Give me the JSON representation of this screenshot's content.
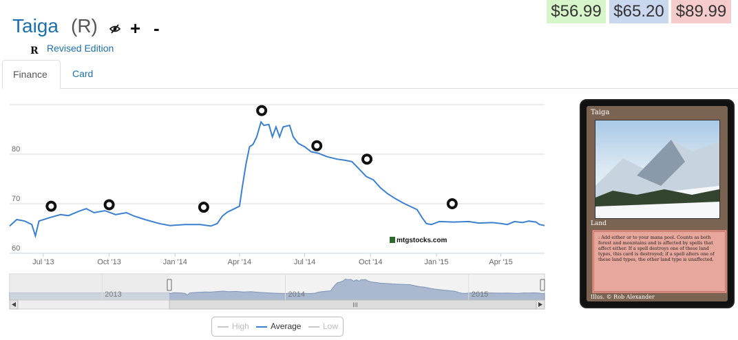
{
  "card": {
    "name": "Taiga",
    "rarity": "(R)",
    "set_symbol": "R",
    "set_name": "Revised Edition",
    "add_label": "+",
    "remove_label": "-"
  },
  "prices": {
    "low": "$56.99",
    "average": "$65.20",
    "high": "$89.99",
    "colors": {
      "low": "#d6f5c8",
      "average": "#c9d7ef",
      "high": "#f5cbcb"
    }
  },
  "tabs": [
    {
      "label": "Finance",
      "active": true
    },
    {
      "label": "Card",
      "active": false
    }
  ],
  "chart_data": {
    "type": "line",
    "title": "",
    "xlabel": "",
    "ylabel": "",
    "y_ticks": [
      60,
      70,
      80
    ],
    "ylim": [
      60,
      90
    ],
    "x_tick_labels": [
      "Jul '13",
      "Oct '13",
      "Jan '14",
      "Apr '14",
      "Jul '14",
      "Oct '14",
      "Jan '15",
      "Apr '15"
    ],
    "x_tick_dates": [
      "2013-07-01",
      "2013-10-01",
      "2014-01-01",
      "2014-04-01",
      "2014-07-01",
      "2014-10-01",
      "2015-01-01",
      "2015-04-01"
    ],
    "xlim": [
      "2013-05-15",
      "2015-06-01"
    ],
    "grid": true,
    "series": [
      {
        "name": "Average",
        "color": "#3a7fd0",
        "points": [
          [
            "2013-05-15",
            65.5
          ],
          [
            "2013-05-25",
            66.8
          ],
          [
            "2013-06-05",
            66.5
          ],
          [
            "2013-06-15",
            65.8
          ],
          [
            "2013-06-20",
            63.5
          ],
          [
            "2013-06-25",
            66.5
          ],
          [
            "2013-07-10",
            67.2
          ],
          [
            "2013-07-25",
            67.8
          ],
          [
            "2013-08-05",
            67.6
          ],
          [
            "2013-08-20",
            68.5
          ],
          [
            "2013-08-30",
            69.0
          ],
          [
            "2013-09-10",
            68.2
          ],
          [
            "2013-09-25",
            68.6
          ],
          [
            "2013-10-10",
            67.8
          ],
          [
            "2013-10-25",
            68.2
          ],
          [
            "2013-11-05",
            67.5
          ],
          [
            "2013-11-20",
            66.8
          ],
          [
            "2013-12-10",
            66.0
          ],
          [
            "2013-12-25",
            65.6
          ],
          [
            "2014-01-15",
            65.8
          ],
          [
            "2014-02-05",
            65.8
          ],
          [
            "2014-02-20",
            65.5
          ],
          [
            "2014-03-01",
            66.0
          ],
          [
            "2014-03-08",
            67.5
          ],
          [
            "2014-03-15",
            68.3
          ],
          [
            "2014-03-25",
            69.0
          ],
          [
            "2014-04-01",
            69.5
          ],
          [
            "2014-04-05",
            73.5
          ],
          [
            "2014-04-10",
            78.0
          ],
          [
            "2014-04-15",
            81.5
          ],
          [
            "2014-04-20",
            82.0
          ],
          [
            "2014-04-25",
            83.5
          ],
          [
            "2014-05-01",
            86.5
          ],
          [
            "2014-05-05",
            85.8
          ],
          [
            "2014-05-12",
            86.0
          ],
          [
            "2014-05-17",
            83.5
          ],
          [
            "2014-05-22",
            85.5
          ],
          [
            "2014-05-27",
            83.5
          ],
          [
            "2014-06-01",
            85.5
          ],
          [
            "2014-06-10",
            85.8
          ],
          [
            "2014-06-15",
            83.5
          ],
          [
            "2014-06-22",
            82.2
          ],
          [
            "2014-07-01",
            81.5
          ],
          [
            "2014-07-10",
            80.5
          ],
          [
            "2014-07-20",
            80.2
          ],
          [
            "2014-08-01",
            79.5
          ],
          [
            "2014-08-15",
            79.0
          ],
          [
            "2014-08-25",
            78.8
          ],
          [
            "2014-09-05",
            78.5
          ],
          [
            "2014-09-15",
            77.0
          ],
          [
            "2014-09-25",
            75.5
          ],
          [
            "2014-10-05",
            74.8
          ],
          [
            "2014-10-15",
            73.2
          ],
          [
            "2014-10-25",
            72.0
          ],
          [
            "2014-11-05",
            71.0
          ],
          [
            "2014-11-15",
            70.2
          ],
          [
            "2014-11-25",
            69.5
          ],
          [
            "2014-12-05",
            68.8
          ],
          [
            "2014-12-12",
            67.2
          ],
          [
            "2014-12-18",
            66.0
          ],
          [
            "2014-12-25",
            65.8
          ],
          [
            "2015-01-05",
            66.4
          ],
          [
            "2015-01-25",
            66.3
          ],
          [
            "2015-02-15",
            66.4
          ],
          [
            "2015-03-01",
            66.1
          ],
          [
            "2015-03-20",
            66.2
          ],
          [
            "2015-04-01",
            66.0
          ],
          [
            "2015-04-10",
            65.8
          ],
          [
            "2015-04-20",
            66.4
          ],
          [
            "2015-05-01",
            66.2
          ],
          [
            "2015-05-10",
            66.5
          ],
          [
            "2015-05-20",
            66.3
          ],
          [
            "2015-05-25",
            65.8
          ],
          [
            "2015-06-01",
            65.6
          ]
        ]
      },
      {
        "name": "High",
        "color": "#c0c0c0",
        "visible": false,
        "points": []
      },
      {
        "name": "Low",
        "color": "#c0c0c0",
        "visible": false,
        "points": []
      }
    ],
    "set_release_markers": [
      {
        "date": "2013-07-12",
        "value": 69.5,
        "icon": "m14-set-icon"
      },
      {
        "date": "2013-10-01",
        "value": 69.8,
        "icon": "theros-set-icon"
      },
      {
        "date": "2014-02-10",
        "value": 69.3,
        "icon": "born-of-the-gods-set-icon"
      },
      {
        "date": "2014-05-02",
        "value": 88.8,
        "icon": "journey-into-nyx-set-icon"
      },
      {
        "date": "2014-07-18",
        "value": 81.7,
        "icon": "m15-set-icon"
      },
      {
        "date": "2014-09-26",
        "value": 79.0,
        "icon": "khans-of-tarkir-set-icon"
      },
      {
        "date": "2015-01-23",
        "value": 70.0,
        "icon": "fate-reforged-set-icon"
      }
    ],
    "navigator": {
      "year_labels": [
        "2013",
        "2014",
        "2015"
      ],
      "year_dates": [
        "2013-01-01",
        "2014-01-01",
        "2015-01-01"
      ],
      "xlim": [
        "2012-07-01",
        "2015-06-01"
      ],
      "selection": [
        "2013-05-15",
        "2015-06-01"
      ]
    },
    "legend": {
      "items": [
        "High",
        "Average",
        "Low"
      ],
      "placement": "bottom-center"
    },
    "watermark": "mtgstocks.com"
  },
  "card_image": {
    "title": "Taiga",
    "type_line": "Land",
    "rules_text": ": Add either  or  to your mana pool. Counts as both forest and mountains and is affected by spells that affect either. If a spell destroys one of these land types, this card is destroyed; if a spell alters one of these land types, the other land type is unaffected.",
    "artist": "Illus. © Rob Alexander"
  }
}
